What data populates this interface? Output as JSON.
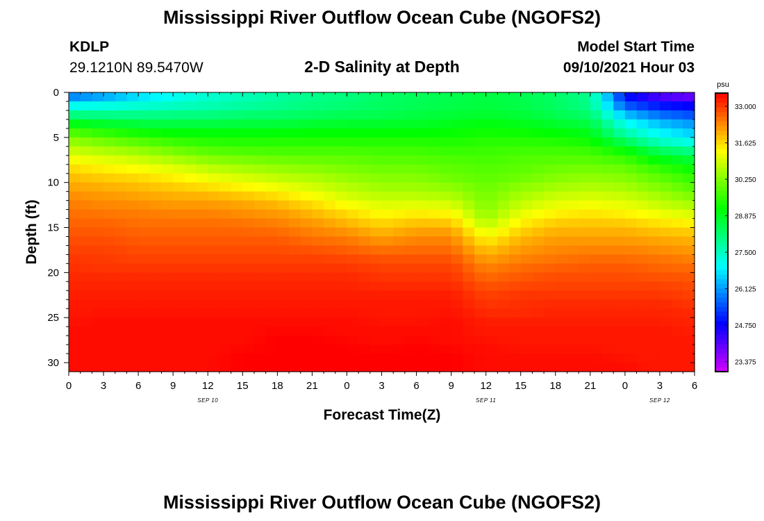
{
  "header": {
    "title": "Mississippi River Outflow Ocean Cube (NGOFS2)",
    "footer_title": "Mississippi River Outflow Ocean Cube (NGOFS2)",
    "station": "KDLP",
    "coordinates": "29.1210N  89.5470W",
    "plot_title": "2-D Salinity at Depth",
    "start_label": "Model Start Time",
    "start_value": "09/10/2021 Hour 03"
  },
  "chart_data": {
    "type": "heatmap",
    "title": "2-D Salinity at Depth",
    "xlabel": "Forecast Time(Z)",
    "ylabel": "Depth (ft)",
    "x_ticks": [
      "0",
      "3",
      "6",
      "9",
      "12",
      "15",
      "18",
      "21",
      "0",
      "3",
      "6",
      "9",
      "12",
      "15",
      "18",
      "21",
      "0",
      "3",
      "6"
    ],
    "x_range_hours": [
      0,
      54
    ],
    "date_labels": [
      {
        "text": "SEP 10",
        "hour": 12
      },
      {
        "text": "SEP 11",
        "hour": 36
      },
      {
        "text": "SEP 12",
        "hour": 51
      }
    ],
    "y_ticks": [
      0,
      5,
      10,
      15,
      20,
      25,
      30
    ],
    "ylim": [
      0,
      31
    ],
    "y_inverted": true,
    "colorbar": {
      "unit": "psu",
      "ticks": [
        "33.000",
        "31.625",
        "30.250",
        "28.875",
        "27.500",
        "26.125",
        "24.750",
        "23.375"
      ],
      "range": [
        23.0,
        33.5
      ]
    },
    "hours": [
      0,
      3,
      6,
      9,
      12,
      15,
      18,
      21,
      24,
      27,
      30,
      33,
      36,
      39,
      42,
      45,
      48,
      51,
      54
    ],
    "depths_ft": [
      0,
      1,
      2,
      3,
      4,
      5,
      6,
      7,
      8,
      9,
      10,
      11,
      12,
      13,
      14,
      15,
      16,
      17,
      18,
      19,
      20,
      21,
      22,
      23,
      24,
      25,
      26,
      27,
      28,
      29,
      30,
      31
    ],
    "salinity_psu": [
      [
        25.3,
        25.8,
        26.5,
        27.0,
        27.4,
        27.6,
        27.8,
        28.0,
        28.1,
        28.3,
        28.4,
        28.5,
        28.6,
        28.5,
        28.3,
        28.0,
        24.8,
        23.8,
        23.5
      ],
      [
        26.6,
        26.8,
        27.0,
        27.2,
        27.4,
        27.6,
        27.8,
        28.0,
        28.1,
        28.3,
        28.4,
        28.5,
        28.6,
        28.5,
        28.3,
        27.9,
        25.2,
        24.6,
        24.4
      ],
      [
        27.6,
        27.6,
        27.7,
        27.8,
        27.9,
        28.0,
        28.1,
        28.2,
        28.3,
        28.4,
        28.5,
        28.6,
        28.7,
        28.6,
        28.4,
        28.1,
        26.0,
        25.4,
        25.1
      ],
      [
        28.6,
        28.4,
        28.3,
        28.3,
        28.3,
        28.4,
        28.4,
        28.5,
        28.6,
        28.6,
        28.7,
        28.8,
        28.9,
        28.8,
        28.6,
        28.4,
        26.9,
        26.1,
        25.8
      ],
      [
        29.5,
        29.2,
        29.0,
        28.9,
        28.9,
        28.9,
        28.9,
        29.0,
        29.0,
        29.0,
        29.0,
        29.1,
        29.2,
        29.1,
        29.0,
        28.8,
        27.4,
        26.8,
        26.4
      ],
      [
        30.2,
        29.9,
        29.6,
        29.4,
        29.3,
        29.3,
        29.3,
        29.3,
        29.3,
        29.3,
        29.3,
        29.3,
        29.4,
        29.4,
        29.3,
        29.1,
        28.0,
        27.1,
        26.7
      ],
      [
        30.7,
        30.4,
        30.2,
        29.9,
        29.7,
        29.6,
        29.6,
        29.6,
        29.6,
        29.6,
        29.6,
        29.5,
        29.6,
        29.6,
        29.6,
        29.5,
        28.9,
        28.0,
        27.6
      ],
      [
        31.1,
        30.9,
        30.7,
        30.4,
        30.1,
        30.0,
        29.9,
        29.9,
        29.9,
        29.8,
        29.8,
        29.7,
        29.7,
        29.8,
        29.8,
        29.8,
        29.5,
        28.8,
        28.4
      ],
      [
        31.5,
        31.3,
        31.1,
        30.9,
        30.6,
        30.4,
        30.3,
        30.2,
        30.1,
        30.0,
        30.0,
        29.9,
        29.8,
        29.9,
        30.0,
        30.0,
        29.9,
        29.4,
        29.0
      ],
      [
        31.8,
        31.6,
        31.5,
        31.3,
        31.0,
        30.8,
        30.6,
        30.5,
        30.3,
        30.2,
        30.2,
        30.0,
        29.9,
        30.0,
        30.2,
        30.3,
        30.2,
        29.8,
        29.4
      ],
      [
        32.0,
        31.9,
        31.8,
        31.6,
        31.4,
        31.2,
        31.0,
        30.8,
        30.6,
        30.4,
        30.4,
        30.2,
        30.0,
        30.2,
        30.4,
        30.5,
        30.4,
        30.1,
        29.7
      ],
      [
        32.2,
        32.1,
        32.0,
        31.9,
        31.8,
        31.6,
        31.4,
        31.1,
        30.8,
        30.6,
        30.6,
        30.5,
        30.1,
        30.5,
        30.7,
        30.8,
        30.7,
        30.4,
        30.0
      ],
      [
        32.4,
        32.3,
        32.2,
        32.1,
        32.1,
        32.0,
        31.8,
        31.5,
        31.1,
        30.9,
        30.9,
        30.8,
        30.2,
        30.7,
        31.0,
        31.1,
        31.0,
        30.7,
        30.4
      ],
      [
        32.5,
        32.4,
        32.4,
        32.3,
        32.3,
        32.2,
        32.1,
        31.8,
        31.5,
        31.2,
        31.3,
        31.2,
        30.3,
        31.0,
        31.3,
        31.4,
        31.3,
        31.0,
        30.8
      ],
      [
        32.6,
        32.6,
        32.5,
        32.5,
        32.5,
        32.4,
        32.3,
        32.1,
        31.8,
        31.5,
        31.7,
        31.6,
        30.5,
        31.3,
        31.6,
        31.7,
        31.6,
        31.4,
        31.2
      ],
      [
        32.7,
        32.7,
        32.6,
        32.6,
        32.6,
        32.6,
        32.5,
        32.3,
        32.1,
        31.8,
        32.0,
        32.0,
        30.9,
        31.6,
        31.9,
        31.9,
        31.9,
        31.7,
        31.6
      ],
      [
        32.8,
        32.8,
        32.7,
        32.7,
        32.7,
        32.7,
        32.7,
        32.5,
        32.4,
        32.1,
        32.3,
        32.3,
        31.3,
        31.9,
        32.1,
        32.1,
        32.1,
        32.0,
        31.9
      ],
      [
        32.9,
        32.9,
        32.8,
        32.8,
        32.8,
        32.8,
        32.8,
        32.7,
        32.6,
        32.4,
        32.5,
        32.5,
        31.7,
        32.1,
        32.3,
        32.3,
        32.3,
        32.2,
        32.1
      ],
      [
        33.0,
        33.0,
        32.9,
        32.9,
        32.9,
        32.9,
        32.9,
        32.9,
        32.8,
        32.7,
        32.7,
        32.7,
        32.0,
        32.3,
        32.4,
        32.5,
        32.5,
        32.4,
        32.3
      ],
      [
        33.1,
        33.0,
        33.0,
        33.0,
        33.0,
        33.0,
        33.0,
        33.0,
        33.0,
        32.9,
        32.9,
        32.9,
        32.3,
        32.5,
        32.6,
        32.7,
        32.7,
        32.6,
        32.5
      ],
      [
        33.1,
        33.1,
        33.1,
        33.1,
        33.1,
        33.1,
        33.1,
        33.1,
        33.1,
        33.0,
        33.0,
        33.0,
        32.5,
        32.7,
        32.8,
        32.8,
        32.8,
        32.7,
        32.7
      ],
      [
        33.2,
        33.2,
        33.2,
        33.2,
        33.2,
        33.2,
        33.2,
        33.2,
        33.2,
        33.1,
        33.1,
        33.1,
        32.7,
        32.8,
        32.9,
        32.9,
        32.9,
        32.9,
        32.8
      ],
      [
        33.2,
        33.2,
        33.2,
        33.2,
        33.2,
        33.2,
        33.2,
        33.2,
        33.2,
        33.2,
        33.2,
        33.2,
        32.9,
        33.0,
        33.0,
        33.0,
        33.0,
        33.0,
        32.9
      ],
      [
        33.3,
        33.3,
        33.3,
        33.3,
        33.3,
        33.3,
        33.3,
        33.3,
        33.3,
        33.3,
        33.3,
        33.3,
        33.0,
        33.1,
        33.1,
        33.1,
        33.1,
        33.1,
        33.0
      ],
      [
        33.3,
        33.3,
        33.3,
        33.3,
        33.3,
        33.3,
        33.3,
        33.3,
        33.3,
        33.3,
        33.3,
        33.3,
        33.1,
        33.1,
        33.2,
        33.2,
        33.2,
        33.2,
        33.1
      ],
      [
        33.3,
        33.4,
        33.4,
        33.4,
        33.4,
        33.4,
        33.4,
        33.4,
        33.4,
        33.3,
        33.3,
        33.4,
        33.2,
        33.2,
        33.2,
        33.2,
        33.2,
        33.2,
        33.2
      ],
      [
        33.4,
        33.4,
        33.4,
        33.4,
        33.4,
        33.4,
        33.4,
        33.4,
        33.4,
        33.4,
        33.4,
        33.4,
        33.3,
        33.3,
        33.3,
        33.3,
        33.3,
        33.3,
        33.2
      ],
      [
        33.4,
        33.4,
        33.4,
        33.4,
        33.4,
        33.4,
        33.5,
        33.5,
        33.4,
        33.4,
        33.4,
        33.4,
        33.3,
        33.3,
        33.3,
        33.3,
        33.3,
        33.3,
        33.3
      ],
      [
        33.4,
        33.4,
        33.4,
        33.4,
        33.4,
        33.4,
        33.5,
        33.5,
        33.5,
        33.4,
        33.5,
        33.4,
        33.4,
        33.3,
        33.3,
        33.3,
        33.3,
        33.3,
        33.3
      ],
      [
        33.4,
        33.4,
        33.4,
        33.4,
        33.4,
        33.5,
        33.5,
        33.5,
        33.5,
        33.5,
        33.5,
        33.5,
        33.4,
        33.4,
        33.4,
        33.4,
        33.3,
        33.3,
        33.3
      ],
      [
        33.4,
        33.4,
        33.4,
        33.4,
        33.4,
        33.5,
        33.5,
        33.5,
        33.5,
        33.5,
        33.5,
        33.5,
        33.4,
        33.4,
        33.4,
        33.4,
        33.4,
        33.3,
        33.3
      ],
      [
        33.4,
        33.4,
        33.4,
        33.4,
        33.4,
        33.5,
        33.5,
        33.5,
        33.5,
        33.5,
        33.5,
        33.5,
        33.4,
        33.4,
        33.4,
        33.4,
        33.4,
        33.3,
        33.3
      ]
    ]
  }
}
